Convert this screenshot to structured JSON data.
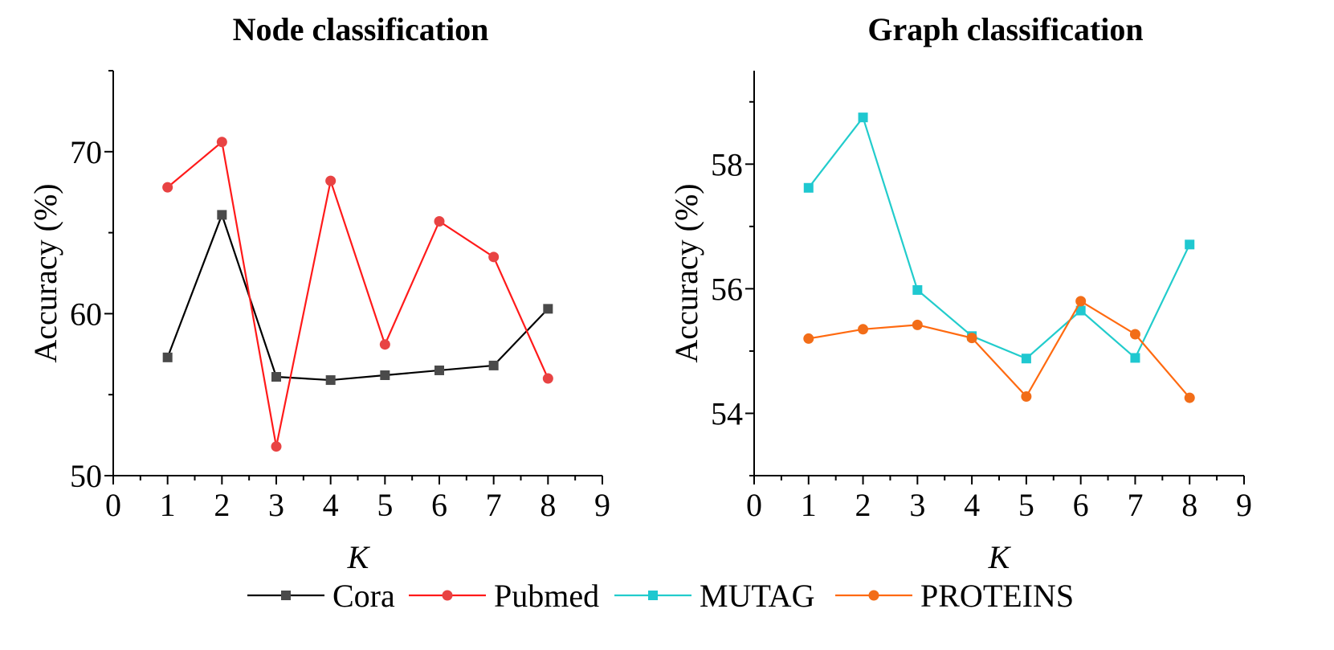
{
  "chart_data": [
    {
      "type": "line",
      "title": "Node classification",
      "xlabel": "K",
      "ylabel": "Accuracy (%)",
      "xlim": [
        0,
        9
      ],
      "ylim": [
        50,
        75
      ],
      "x_ticks": [
        0,
        1,
        2,
        3,
        4,
        5,
        6,
        7,
        8,
        9
      ],
      "y_ticks": [
        50,
        60,
        70
      ],
      "x": [
        1,
        2,
        3,
        4,
        5,
        6,
        7,
        8
      ],
      "series": [
        {
          "name": "Cora",
          "color": "#000000",
          "marker_color": "#4a4a4a",
          "marker": "square",
          "values": [
            57.3,
            66.1,
            56.1,
            55.9,
            56.2,
            56.5,
            56.8,
            60.3
          ]
        },
        {
          "name": "Pubmed",
          "color": "#ff1a1a",
          "marker_color": "#e84343",
          "marker": "circle",
          "values": [
            67.8,
            70.6,
            51.8,
            68.2,
            58.1,
            65.7,
            63.5,
            56.0
          ]
        }
      ]
    },
    {
      "type": "line",
      "title": "Graph classification",
      "xlabel": "K",
      "ylabel": "Accuracy (%)",
      "xlim": [
        0,
        9
      ],
      "ylim": [
        53,
        59.5
      ],
      "x_ticks": [
        0,
        1,
        2,
        3,
        4,
        5,
        6,
        7,
        8,
        9
      ],
      "y_ticks": [
        54,
        56,
        58
      ],
      "x": [
        1,
        2,
        3,
        4,
        5,
        6,
        7,
        8
      ],
      "series": [
        {
          "name": "MUTAG",
          "color": "#22cccc",
          "marker_color": "#1fc8d0",
          "marker": "square",
          "values": [
            57.62,
            58.75,
            55.98,
            55.24,
            54.88,
            55.65,
            54.89,
            56.71
          ]
        },
        {
          "name": "PROTEINS",
          "color": "#ff6a10",
          "marker_color": "#f26d18",
          "marker": "circle",
          "values": [
            55.2,
            55.35,
            55.42,
            55.21,
            54.27,
            55.8,
            55.27,
            54.25
          ]
        }
      ]
    }
  ],
  "legend": {
    "position": "bottom-center",
    "entries": [
      "Cora",
      "Pubmed",
      "MUTAG",
      "PROTEINS"
    ]
  }
}
